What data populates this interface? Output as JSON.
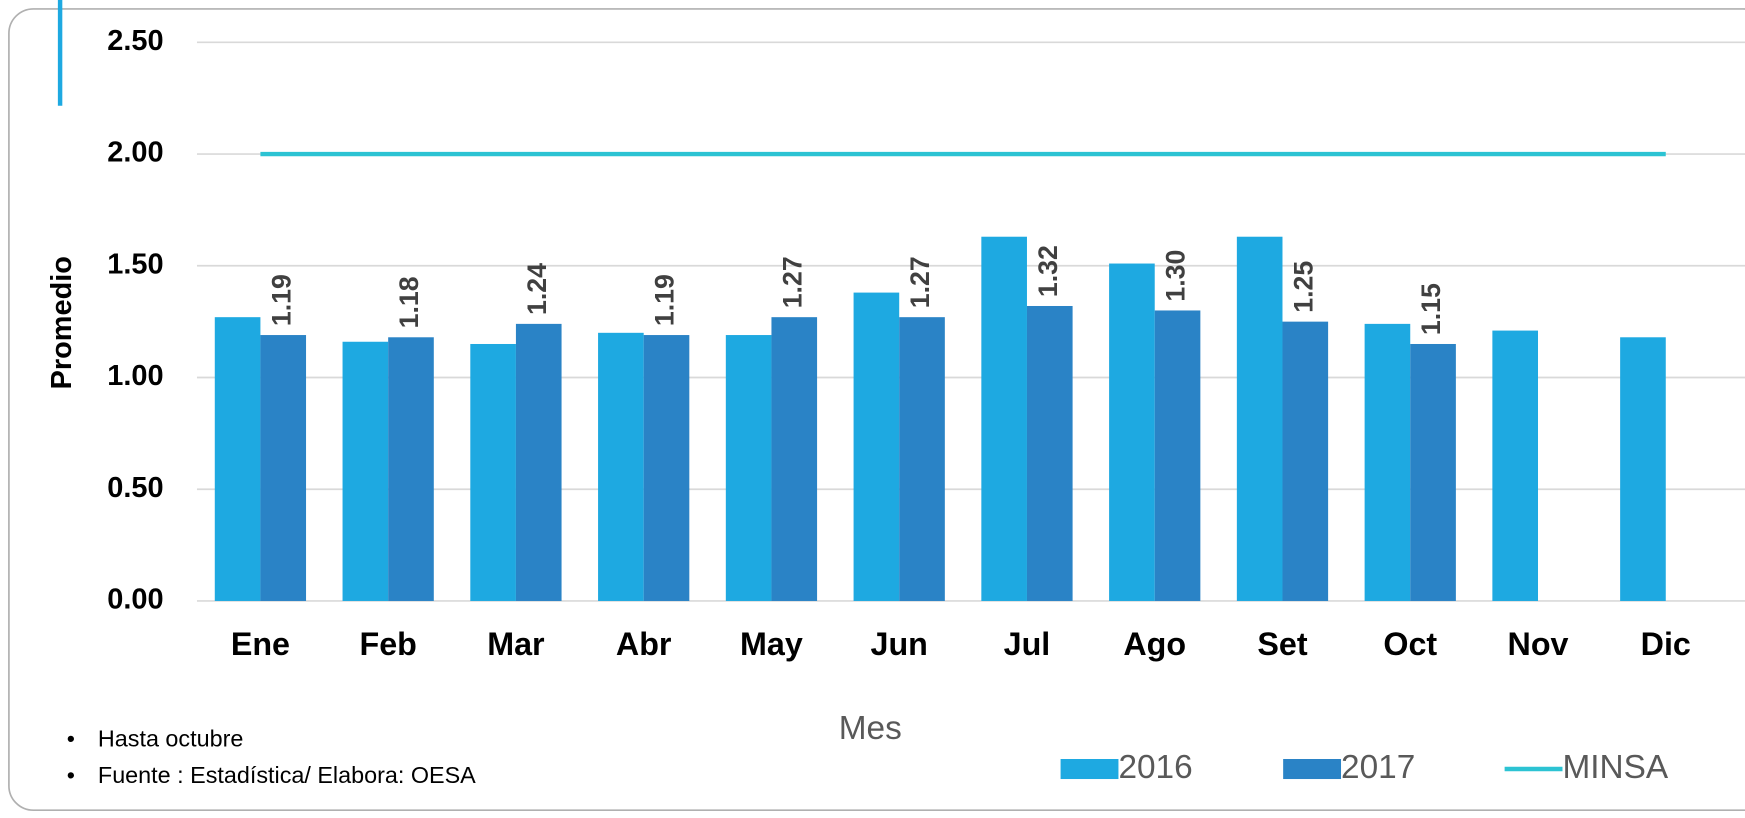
{
  "chart_data": {
    "type": "bar",
    "categories": [
      "Ene",
      "Feb",
      "Mar",
      "Abr",
      "May",
      "Jun",
      "Jul",
      "Ago",
      "Set",
      "Oct",
      "Nov",
      "Dic"
    ],
    "series": [
      {
        "name": "2016",
        "color": "#1ea9e1",
        "values": [
          1.27,
          1.16,
          1.15,
          1.2,
          1.19,
          1.38,
          1.63,
          1.51,
          1.63,
          1.24,
          1.21,
          1.18
        ]
      },
      {
        "name": "2017",
        "color": "#2a83c6",
        "values": [
          1.19,
          1.18,
          1.24,
          1.19,
          1.27,
          1.27,
          1.32,
          1.3,
          1.25,
          1.15,
          null,
          null
        ],
        "value_labels": [
          "1.19",
          "1.18",
          "1.24",
          "1.19",
          "1.27",
          "1.27",
          "1.32",
          "1.30",
          "1.25",
          "1.15",
          null,
          null
        ]
      },
      {
        "name": "MINSA",
        "type": "line",
        "color": "#2cc3d3",
        "values": [
          2,
          2,
          2,
          2,
          2,
          2,
          2,
          2,
          2,
          2,
          2,
          2
        ]
      }
    ],
    "ylabel": "Promedio",
    "xlabel": "Mes",
    "ylim": [
      0,
      2.5
    ],
    "yticks": [
      {
        "value": 0,
        "label": "0.00"
      },
      {
        "value": 0.5,
        "label": "0.50"
      },
      {
        "value": 1,
        "label": "1.00"
      },
      {
        "value": 1.5,
        "label": "1.50"
      },
      {
        "value": 2,
        "label": "2.00"
      },
      {
        "value": 2.5,
        "label": "2.50"
      }
    ],
    "grid": true,
    "legend": "bottom-right",
    "notes": [
      "Hasta octubre",
      "Fuente : Estadística/ Elabora: OESA"
    ]
  }
}
